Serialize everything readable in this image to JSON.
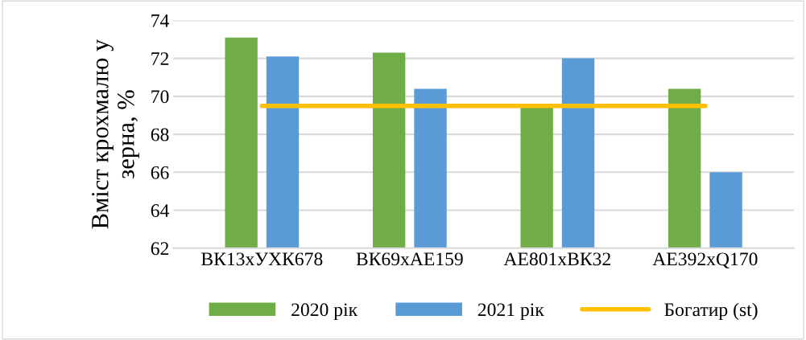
{
  "chart_data": {
    "type": "bar",
    "ylabel": "Вміст крохмалю у\nзерна, %",
    "categories": [
      "ВК13хУХК678",
      "ВК69хАЕ159",
      "АЕ801хВК32",
      "АЕ392хQ170"
    ],
    "series": [
      {
        "name": "2020 рік",
        "color": "#70ad47",
        "values": [
          73.1,
          72.3,
          69.4,
          70.4
        ]
      },
      {
        "name": "2021 рік",
        "color": "#5b9bd5",
        "values": [
          72.1,
          70.4,
          72.0,
          66.0
        ]
      },
      {
        "name": "Богатир (st)",
        "type": "line",
        "color": "#ffc000",
        "values": [
          69.5,
          69.5,
          69.5,
          69.5
        ]
      }
    ],
    "ylim": [
      62,
      74
    ],
    "yticks": [
      62,
      64,
      66,
      68,
      70,
      72,
      74
    ],
    "grid": "y",
    "legend": "bottom"
  }
}
